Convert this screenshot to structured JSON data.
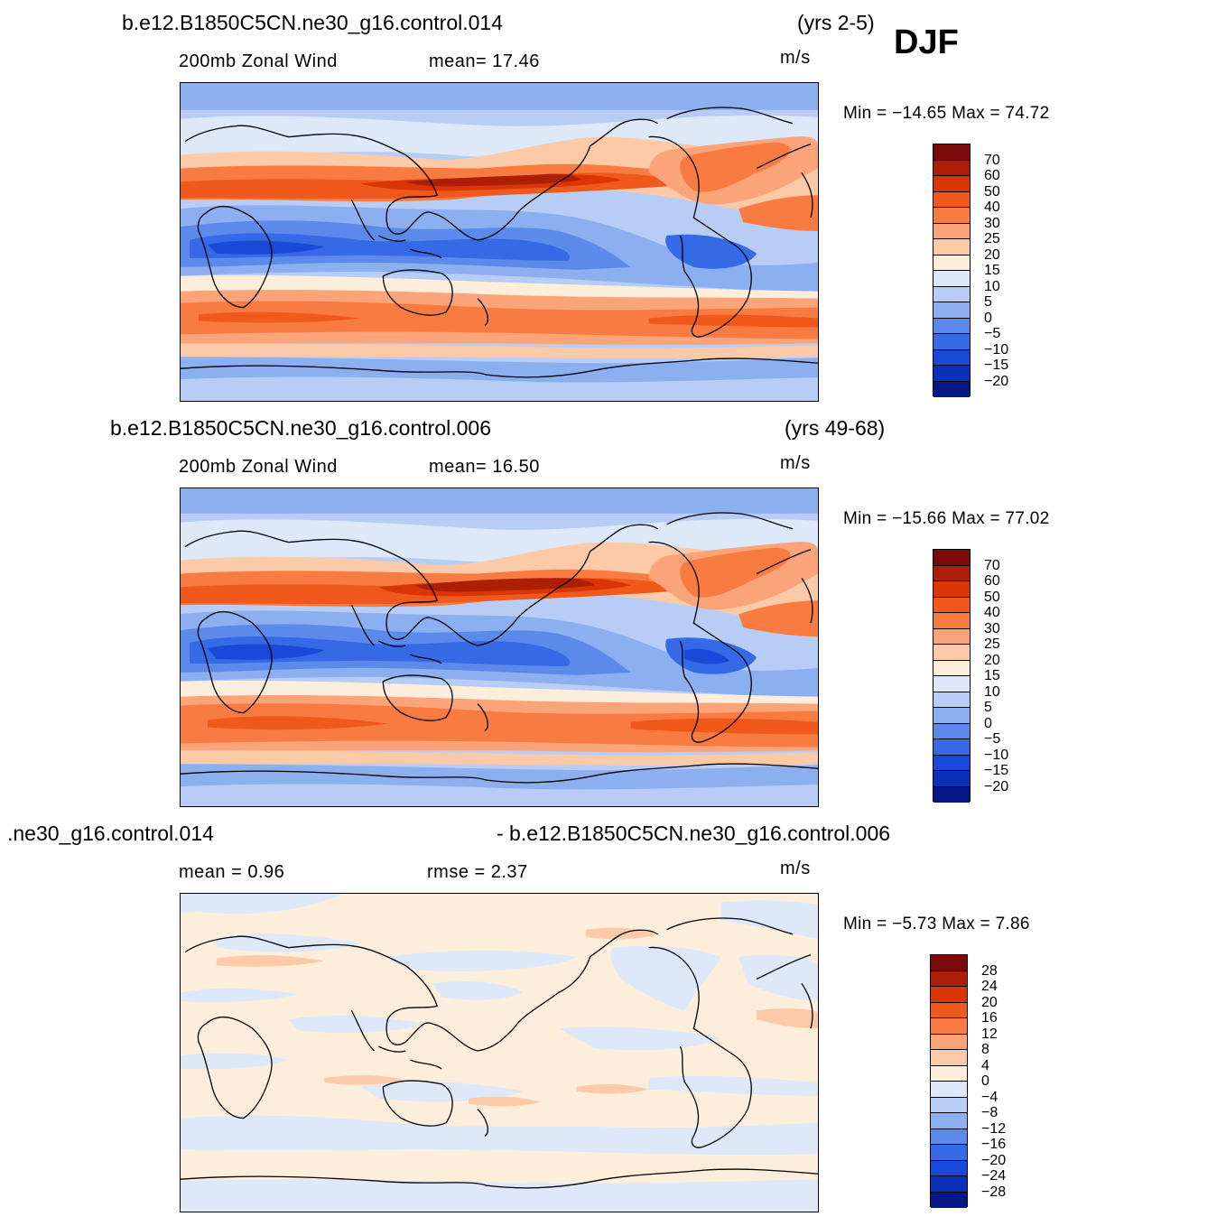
{
  "season": "DJF",
  "panels": [
    {
      "case": "b.e12.B1850C5CN.ne30_g16.control.014",
      "years": "(yrs 2-5)",
      "variable": "200mb  Zonal Wind",
      "stat1": "mean=   17.46",
      "units": "m/s",
      "minmax": "Min  =  −14.65  Max  =    74.72",
      "levels": [
        "70",
        "60",
        "50",
        "40",
        "30",
        "25",
        "20",
        "15",
        "10",
        "5",
        "0",
        "−5",
        "−10",
        "−15",
        "−20"
      ]
    },
    {
      "case": "b.e12.B1850C5CN.ne30_g16.control.006",
      "years": "(yrs 49-68)",
      "variable": "200mb  Zonal Wind",
      "stat1": "mean=   16.50",
      "units": "m/s",
      "minmax": "Min  =  −15.66  Max  =    77.02",
      "levels": [
        "70",
        "60",
        "50",
        "40",
        "30",
        "25",
        "20",
        "15",
        "10",
        "5",
        "0",
        "−5",
        "−10",
        "−15",
        "−20"
      ]
    },
    {
      "case_left": ".ne30_g16.control.014",
      "case_right": "- b.e12.B1850C5CN.ne30_g16.control.006",
      "stat1": "mean  =     0.96",
      "stat2": "rmse  =     2.37",
      "units": "m/s",
      "minmax": "Min  =    −5.73  Max  =      7.86",
      "levels": [
        "28",
        "24",
        "20",
        "16",
        "12",
        "8",
        "4",
        "0",
        "−4",
        "−8",
        "−12",
        "−16",
        "−20",
        "−24",
        "−28"
      ]
    }
  ],
  "colorbar_colors": [
    "#7d0a0a",
    "#ad1e06",
    "#d93505",
    "#f0581c",
    "#f87c42",
    "#fba47a",
    "#fdcaa8",
    "#fdeedc",
    "#dde9f8",
    "#b7cdf5",
    "#8caff0",
    "#5c8aea",
    "#3569e6",
    "#1a48d8",
    "#0a2fb8",
    "#061887"
  ]
}
